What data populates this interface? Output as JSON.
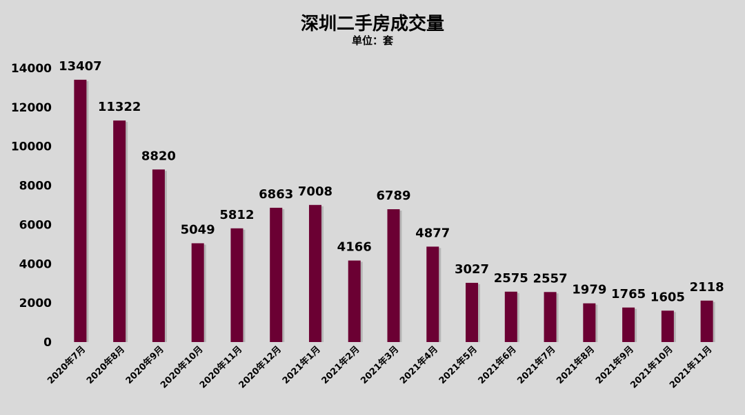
{
  "chart_data": {
    "type": "bar",
    "title": "深圳二手房成交量",
    "subtitle": "单位：套",
    "categories": [
      "2020年7月",
      "2020年8月",
      "2020年9月",
      "2020年10月",
      "2020年11月",
      "2020年12月",
      "2021年1月",
      "2021年2月",
      "2021年3月",
      "2021年4月",
      "2021年5月",
      "2021年6月",
      "2021年7月",
      "2021年8月",
      "2021年9月",
      "2021年10月",
      "2021年11月"
    ],
    "values": [
      13407,
      11322,
      8820,
      5049,
      5812,
      6863,
      7008,
      4166,
      6789,
      4877,
      3027,
      2575,
      2557,
      1979,
      1765,
      1605,
      2118
    ],
    "yticks": [
      0,
      2000,
      4000,
      6000,
      8000,
      10000,
      12000,
      14000
    ],
    "ylim": [
      0,
      14000
    ],
    "grid": false,
    "legend": "none",
    "bar_color": "#6b0033",
    "show_data_labels": true
  }
}
